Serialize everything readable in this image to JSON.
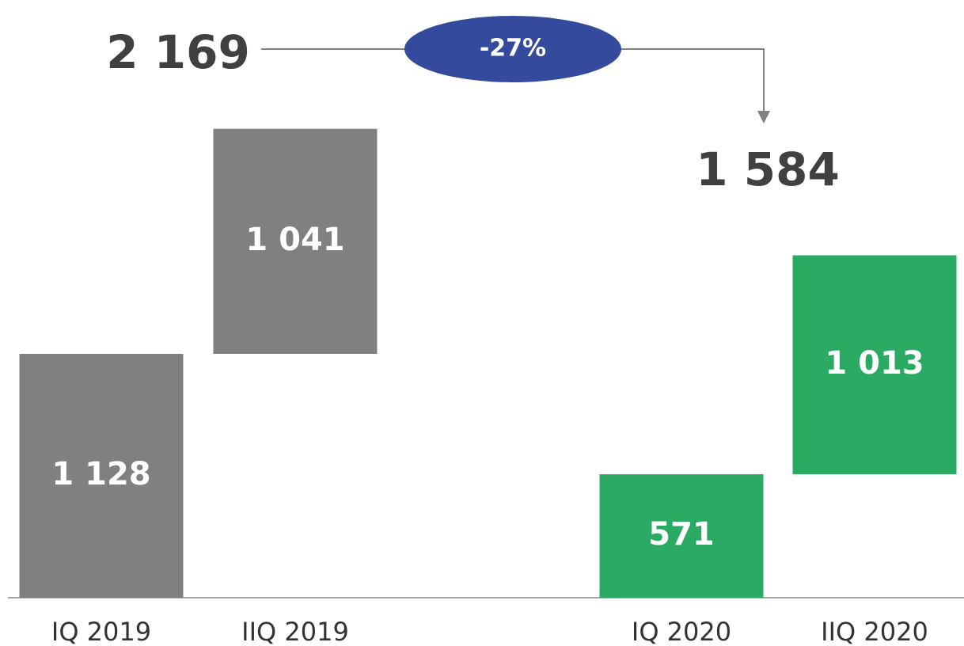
{
  "chart_data": {
    "type": "waterfall",
    "categories": [
      "IQ 2019",
      "IIQ 2019",
      "IQ 2020",
      "IIQ 2020"
    ],
    "values": [
      1128,
      1041,
      571,
      1013
    ],
    "value_labels": [
      "1 128",
      "1 041",
      "571",
      "1 013"
    ],
    "colors": [
      "#808080",
      "#808080",
      "#2aaa63",
      "#2aaa63"
    ],
    "stack_on_previous": [
      false,
      true,
      false,
      true
    ],
    "totals": [
      2169,
      1584
    ],
    "total_labels": [
      "2 169",
      "1 584"
    ],
    "change_label": "-27%",
    "change_color": "#344a9c",
    "ylim": [
      0,
      2765
    ]
  }
}
